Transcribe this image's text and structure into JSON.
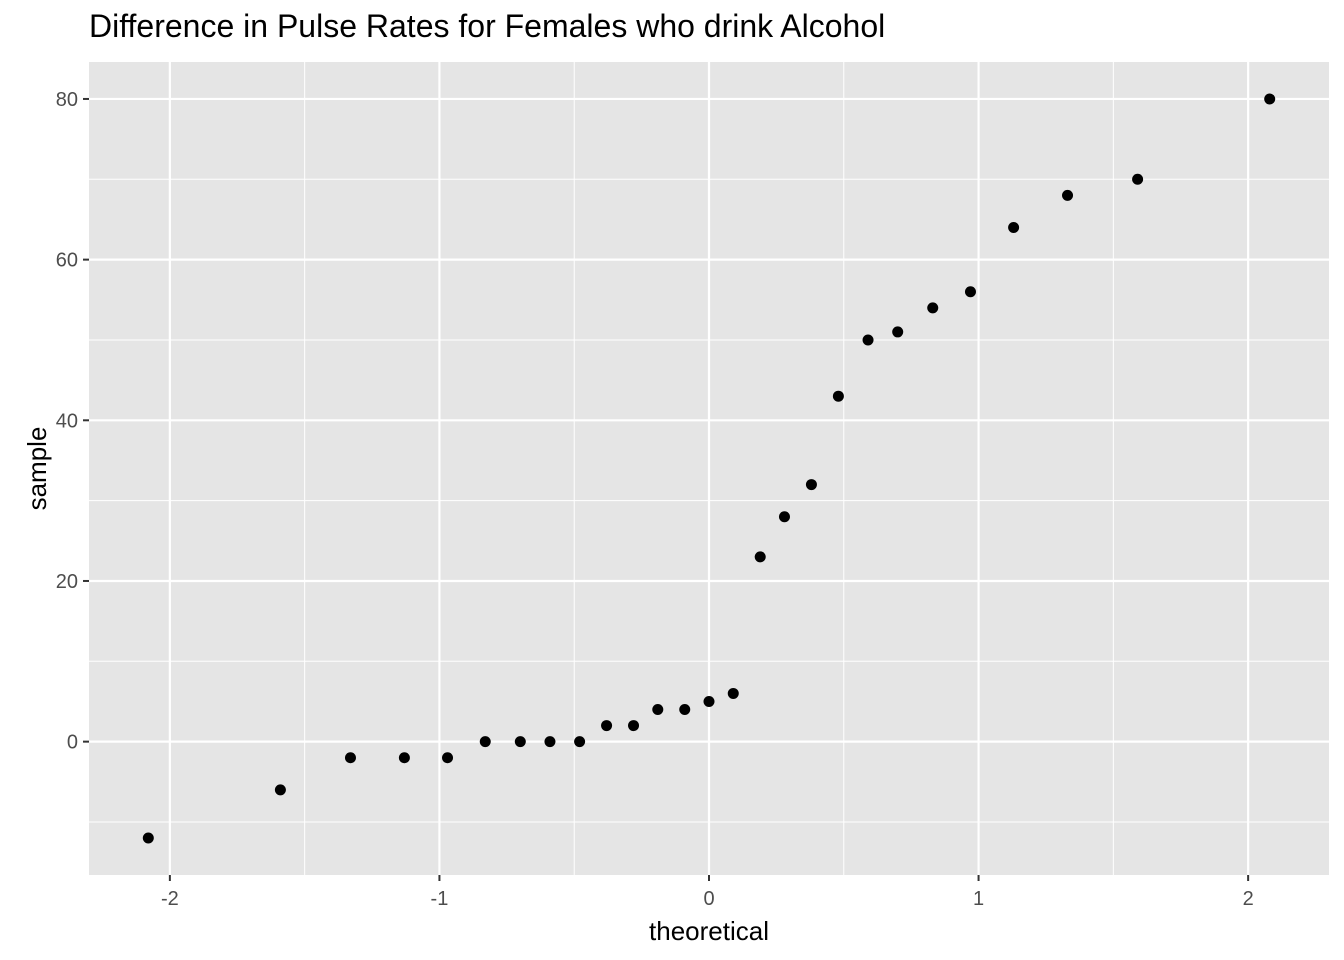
{
  "chart_data": {
    "type": "scatter",
    "title": "Difference in Pulse Rates for Females who drink Alcohol",
    "xlabel": "theoretical",
    "ylabel": "sample",
    "xlim": [
      -2.3,
      2.3
    ],
    "ylim": [
      -16.6,
      84.6
    ],
    "x_ticks": [
      -2,
      -1,
      0,
      1,
      2
    ],
    "x_tick_labels": [
      "-2",
      "-1",
      "0",
      "1",
      "2"
    ],
    "y_ticks": [
      0,
      20,
      40,
      60,
      80
    ],
    "y_tick_labels": [
      "0",
      "20",
      "40",
      "60",
      "80"
    ],
    "grid": true,
    "background": "#e5e5e5",
    "grid_color": "#ffffff",
    "point_color": "#000000",
    "points": [
      {
        "x": -2.08,
        "y": -12
      },
      {
        "x": -1.59,
        "y": -6
      },
      {
        "x": -1.33,
        "y": -2
      },
      {
        "x": -1.13,
        "y": -2
      },
      {
        "x": -0.97,
        "y": -2
      },
      {
        "x": -0.83,
        "y": 0
      },
      {
        "x": -0.7,
        "y": 0
      },
      {
        "x": -0.59,
        "y": 0
      },
      {
        "x": -0.48,
        "y": 0
      },
      {
        "x": -0.38,
        "y": 2
      },
      {
        "x": -0.28,
        "y": 2
      },
      {
        "x": -0.19,
        "y": 4
      },
      {
        "x": -0.09,
        "y": 4
      },
      {
        "x": 0.0,
        "y": 5
      },
      {
        "x": 0.09,
        "y": 6
      },
      {
        "x": 0.19,
        "y": 23
      },
      {
        "x": 0.28,
        "y": 28
      },
      {
        "x": 0.38,
        "y": 32
      },
      {
        "x": 0.48,
        "y": 43
      },
      {
        "x": 0.59,
        "y": 50
      },
      {
        "x": 0.7,
        "y": 51
      },
      {
        "x": 0.83,
        "y": 54
      },
      {
        "x": 0.97,
        "y": 56
      },
      {
        "x": 1.13,
        "y": 64
      },
      {
        "x": 1.33,
        "y": 68
      },
      {
        "x": 1.59,
        "y": 70
      },
      {
        "x": 2.08,
        "y": 80
      }
    ]
  }
}
